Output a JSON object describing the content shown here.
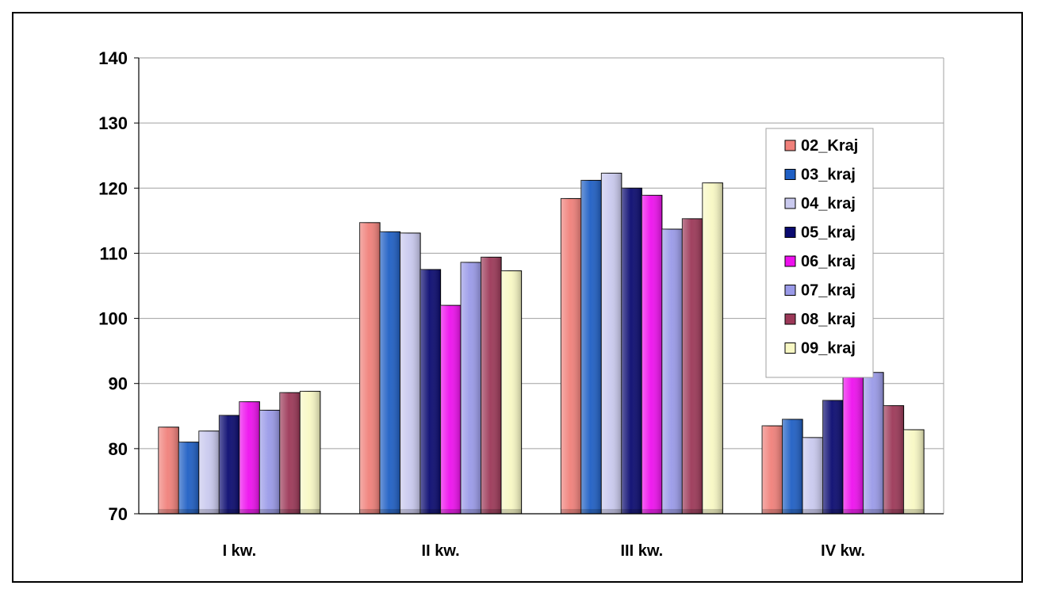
{
  "chart_data": {
    "type": "bar",
    "title": "",
    "xlabel": "",
    "ylabel": "",
    "ylim": [
      70,
      140
    ],
    "yticks": [
      70,
      80,
      90,
      100,
      110,
      120,
      130,
      140
    ],
    "grid": true,
    "legend_position": "right",
    "categories": [
      "I kw.",
      "II kw.",
      "III kw.",
      "IV kw."
    ],
    "series": [
      {
        "name": "02_Kraj",
        "color": "#f0807a",
        "values": [
          83.3,
          114.7,
          118.4,
          83.5
        ]
      },
      {
        "name": "03_kraj",
        "color": "#1f5fc4",
        "values": [
          81.0,
          113.3,
          121.2,
          84.5
        ]
      },
      {
        "name": "04_kraj",
        "color": "#c9c9ee",
        "values": [
          82.7,
          113.1,
          122.3,
          81.7
        ]
      },
      {
        "name": "05_kraj",
        "color": "#0a0a70",
        "values": [
          85.1,
          107.5,
          120.0,
          87.4
        ]
      },
      {
        "name": "06_kraj",
        "color": "#ee10ee",
        "values": [
          87.2,
          102.0,
          118.9,
          91.5
        ]
      },
      {
        "name": "07_kraj",
        "color": "#9a9ae8",
        "values": [
          85.9,
          108.6,
          113.7,
          91.7
        ]
      },
      {
        "name": "08_kraj",
        "color": "#9c3858",
        "values": [
          88.6,
          109.4,
          115.3,
          86.6
        ]
      },
      {
        "name": "09_kraj",
        "color": "#f8f8c4",
        "values": [
          88.8,
          107.3,
          120.8,
          82.9
        ]
      }
    ]
  }
}
